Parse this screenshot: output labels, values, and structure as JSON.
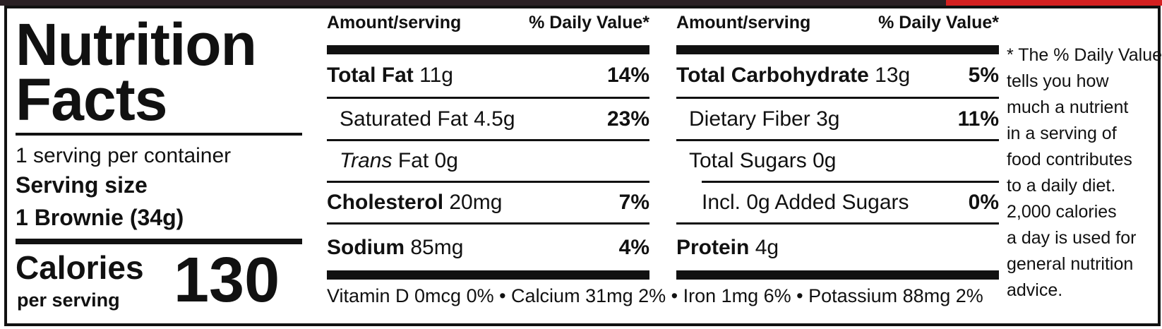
{
  "title": [
    "Nutrition",
    "Facts"
  ],
  "servings": "1 serving per container",
  "serving_size_label": "Serving size",
  "serving_size": "1 Brownie (34g)",
  "calories_label": "Calories",
  "calories_sub": "per serving",
  "calories": "130",
  "columns": [
    {
      "header": [
        "Amount/serving",
        "% Daily Value*"
      ],
      "rows": [
        {
          "name": "Total Fat",
          "amount": "11g",
          "dv": "14%"
        },
        {
          "name": "Saturated Fat",
          "amount": "4.5g",
          "dv": "23%"
        },
        {
          "name_italic": "Trans",
          "name": "Fat",
          "amount": "0g"
        },
        {
          "name": "Cholesterol",
          "amount": "20mg",
          "dv": "7%"
        },
        {
          "name": "Sodium",
          "amount": "85mg",
          "dv": "4%"
        }
      ]
    },
    {
      "header": [
        "Amount/serving",
        "% Daily Value*"
      ],
      "rows": [
        {
          "name": "Total Carbohydrate",
          "amount": "13g",
          "dv": "5%"
        },
        {
          "name": "Dietary Fiber",
          "amount": "3g",
          "dv": "11%"
        },
        {
          "name": "Total Sugars",
          "amount": "0g"
        },
        {
          "name": "Incl. 0g Added Sugars",
          "dv": "0%"
        },
        {
          "name": "Protein",
          "amount": "4g"
        }
      ]
    }
  ],
  "vitamins": "Vitamin D 0mcg 0% • Calcium 31mg 2% • Iron 1mg 6% • Potassium 88mg 2%",
  "footnote": [
    "* The % Daily Value",
    "tells you how",
    "much a nutrient",
    "in a serving of",
    "food contributes",
    "to a daily diet.",
    "2,000 calories",
    "a day is used for",
    "general nutrition",
    "advice."
  ]
}
